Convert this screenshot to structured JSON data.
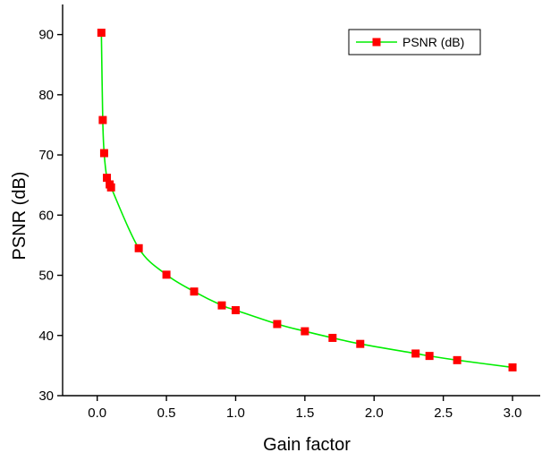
{
  "colors": {
    "line": "#00ee00",
    "marker": "#ff0000",
    "axis": "#000000",
    "background": "#ffffff"
  },
  "chart_data": {
    "type": "line",
    "title": "",
    "xlabel": "Gain factor",
    "ylabel": "PSNR (dB)",
    "xlim": [
      -0.25,
      3.2
    ],
    "ylim": [
      30,
      95
    ],
    "x_ticks": [
      0.0,
      0.5,
      1.0,
      1.5,
      2.0,
      2.5,
      3.0
    ],
    "x_tick_labels": [
      "0.0",
      "0.5",
      "1.0",
      "1.5",
      "2.0",
      "2.5",
      "3.0"
    ],
    "y_ticks": [
      30,
      40,
      50,
      60,
      70,
      80,
      90
    ],
    "y_tick_labels": [
      "30",
      "40",
      "50",
      "60",
      "70",
      "80",
      "90"
    ],
    "grid": false,
    "legend_position": "top-right",
    "series": [
      {
        "name": "PSNR (dB)",
        "marker": "square",
        "points": [
          {
            "x": 0.03,
            "y": 90.3
          },
          {
            "x": 0.04,
            "y": 75.8
          },
          {
            "x": 0.05,
            "y": 70.3
          },
          {
            "x": 0.07,
            "y": 66.2
          },
          {
            "x": 0.09,
            "y": 65.1
          },
          {
            "x": 0.1,
            "y": 64.6
          },
          {
            "x": 0.3,
            "y": 54.5
          },
          {
            "x": 0.5,
            "y": 50.1
          },
          {
            "x": 0.7,
            "y": 47.3
          },
          {
            "x": 0.9,
            "y": 45.0
          },
          {
            "x": 1.0,
            "y": 44.2
          },
          {
            "x": 1.3,
            "y": 41.9
          },
          {
            "x": 1.5,
            "y": 40.7
          },
          {
            "x": 1.7,
            "y": 39.6
          },
          {
            "x": 1.9,
            "y": 38.6
          },
          {
            "x": 2.3,
            "y": 37.0
          },
          {
            "x": 2.4,
            "y": 36.6
          },
          {
            "x": 2.6,
            "y": 35.9
          },
          {
            "x": 3.0,
            "y": 34.7
          }
        ]
      }
    ]
  }
}
